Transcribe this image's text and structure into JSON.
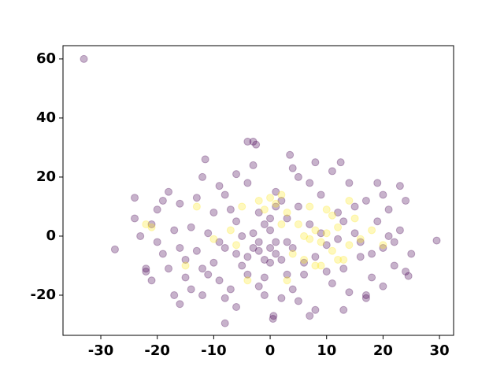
{
  "chart_data": {
    "type": "scatter",
    "xlim": [
      -36.7,
      32.5
    ],
    "ylim": [
      -33.6,
      64.5
    ],
    "xticks": [
      -30,
      -20,
      -10,
      0,
      10,
      20,
      30
    ],
    "yticks": [
      -20,
      0,
      20,
      40,
      60
    ],
    "grid": false,
    "alpha": 0.3,
    "series": [
      {
        "color": "#440154",
        "x": [
          -33,
          29.5,
          -27.5,
          -8,
          0.5,
          0.6,
          -4,
          -3,
          -2.5,
          3.5,
          -11.5,
          24.5,
          23,
          -24,
          17,
          12.5,
          8,
          -24,
          -22,
          -21,
          -20,
          -18,
          -17,
          -16,
          -15,
          -14,
          -13,
          -12,
          -11,
          -10,
          -9,
          -8,
          -7,
          -6,
          -5,
          -4,
          -3,
          -2,
          -1,
          0,
          1,
          2,
          3,
          4,
          5,
          6,
          7,
          8,
          9,
          10,
          11,
          12,
          13,
          14,
          15,
          16,
          17,
          18,
          19,
          20,
          21,
          22,
          23,
          25,
          24,
          -23,
          -21,
          -19,
          -17,
          -16,
          -15,
          -13,
          -12,
          -10,
          -9,
          -8,
          -7,
          -6,
          -5,
          -4,
          -3,
          -2,
          -1,
          0,
          1,
          2,
          3,
          4,
          5,
          6,
          7,
          8,
          9,
          10,
          11,
          12,
          13,
          14,
          15,
          16,
          18,
          19,
          20,
          21,
          22,
          -20,
          -18,
          -14,
          -11,
          -9,
          -6,
          -4,
          -2,
          -1,
          0,
          1,
          2,
          -3,
          -2,
          0,
          1,
          -1,
          3,
          5,
          7,
          -8,
          -12,
          -16,
          -19,
          17,
          24,
          20,
          -22,
          13,
          -6,
          4
        ],
        "y": [
          60,
          -1.5,
          -4.5,
          -29.5,
          -28,
          -27,
          32,
          32,
          31,
          27.5,
          26,
          -13.5,
          17,
          13,
          -21,
          25,
          25,
          6,
          -12,
          -15,
          9,
          15,
          -20,
          -23,
          -8,
          3,
          -5,
          20,
          -13,
          8,
          -2,
          14,
          -18,
          5,
          -10,
          18,
          -4,
          8,
          -14,
          2,
          -6,
          12,
          -2,
          -18,
          20,
          -9,
          4,
          -25,
          14,
          -3,
          -16,
          8,
          -11,
          18,
          1,
          -7,
          12,
          -14,
          5,
          -4,
          9,
          -10,
          2,
          -6,
          -12,
          0,
          4,
          -6,
          2,
          11,
          -14,
          13,
          -20,
          -9,
          17,
          -4,
          9,
          -24,
          0,
          -7,
          24,
          -17,
          4,
          -9,
          15,
          -21,
          6,
          -4,
          10,
          -13,
          18,
          -7,
          1,
          -12,
          22,
          -1,
          5,
          -19,
          10,
          -2,
          -6,
          18,
          -17,
          0,
          -2,
          -2,
          -11,
          -18,
          1,
          -15,
          -6,
          -13,
          -2,
          -8,
          -4,
          -2,
          -8,
          1,
          -5,
          6,
          10,
          -20,
          -13,
          -22,
          -27,
          -21,
          -11,
          -4,
          12,
          -20,
          12,
          14,
          -11,
          -25,
          21,
          23
        ]
      },
      {
        "color": "#fde725",
        "x": [
          6,
          7,
          8,
          9,
          10,
          11,
          12,
          13,
          5,
          3,
          2,
          1,
          0,
          -1,
          4,
          6,
          9,
          14,
          15,
          16,
          11,
          -5,
          -6,
          -7,
          -10,
          -15,
          -13,
          -22,
          -21,
          20,
          18,
          10,
          8,
          3,
          -4,
          12,
          2,
          -2,
          7,
          14
        ],
        "y": [
          0,
          -1,
          2,
          -2,
          1,
          -5,
          3,
          -8,
          4,
          8,
          14,
          11,
          13,
          9,
          -6,
          -8,
          -10,
          -3,
          6,
          -1,
          7,
          10,
          -3,
          2,
          -1,
          -10,
          10,
          4,
          3,
          -3,
          2,
          9,
          -10,
          -15,
          -15,
          -8,
          4,
          12,
          10,
          12
        ]
      }
    ]
  }
}
